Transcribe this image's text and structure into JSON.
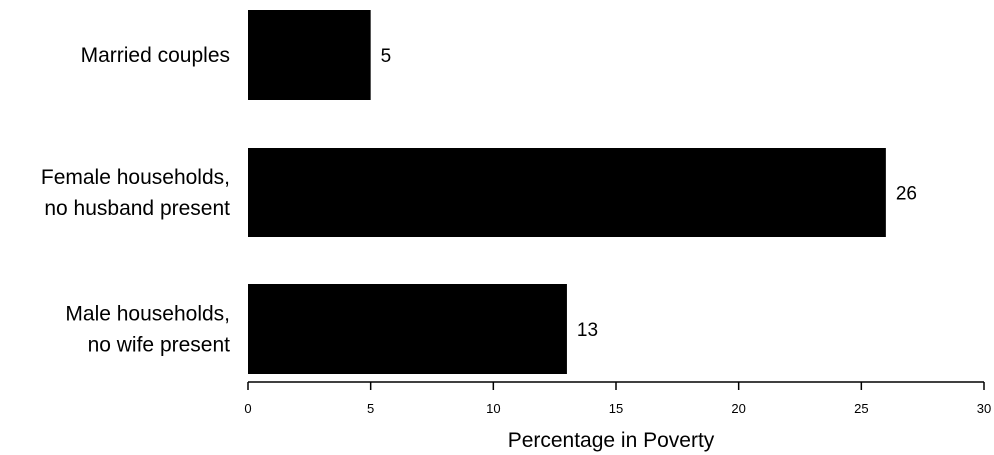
{
  "chart_data": {
    "type": "bar",
    "orientation": "horizontal",
    "categories": [
      [
        "Married couples"
      ],
      [
        "Female households,",
        "no husband present"
      ],
      [
        "Male households,",
        "no wife present"
      ]
    ],
    "values": [
      5,
      26,
      13
    ],
    "value_labels": [
      "5",
      "26",
      "13"
    ],
    "xlabel": "Percentage in Poverty",
    "xlim": [
      0,
      30
    ],
    "xticks": [
      0,
      5,
      10,
      15,
      20,
      25,
      30
    ],
    "grid": false,
    "bar_color": "#000000"
  }
}
